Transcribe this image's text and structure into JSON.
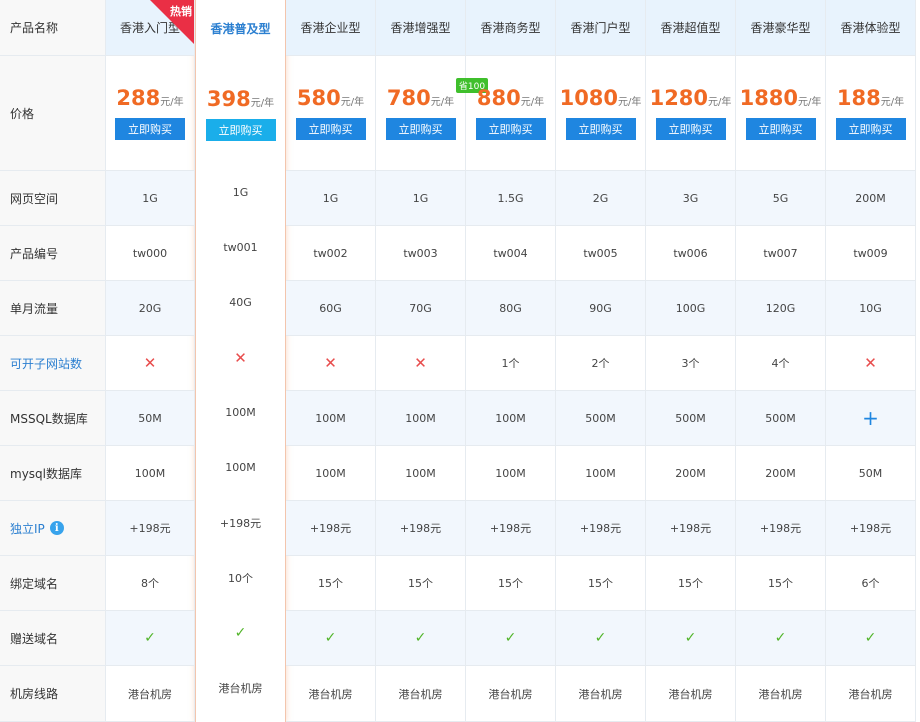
{
  "row_labels": [
    "产品名称",
    "价格",
    "网页空间",
    "产品编号",
    "单月流量",
    "可开子网站数",
    "MSSQL数据库",
    "mysql数据库",
    "独立IP",
    "绑定域名",
    "赠送域名",
    "机房线路"
  ],
  "price_unit": "元/年",
  "buy_label": "立即购买",
  "hot_label": "热销",
  "info_icon": "i",
  "highlight_index": 1,
  "colors": {
    "price": "#f06a24",
    "buy": "#1f86e0",
    "highlight_buy": "#1aaeea",
    "cross": "#e84c4c",
    "check": "#52b52a",
    "header_bg": "#e8f3fd"
  },
  "plans": [
    {
      "name": "香港入门型",
      "price": "288",
      "hot": true,
      "space": "1G",
      "code": "tw000",
      "traffic": "20G",
      "subsites": {
        "icon": "cross-icon"
      },
      "mssql": "50M",
      "mysql": "100M",
      "ip": "+198元",
      "domains": "8个",
      "gift": {
        "icon": "check-icon"
      },
      "line": "港台机房"
    },
    {
      "name": "香港普及型",
      "price": "398",
      "space": "1G",
      "code": "tw001",
      "traffic": "40G",
      "subsites": {
        "icon": "cross-icon"
      },
      "mssql": "100M",
      "mysql": "100M",
      "ip": "+198元",
      "domains": "10个",
      "gift": {
        "icon": "check-icon"
      },
      "line": "港台机房"
    },
    {
      "name": "香港企业型",
      "price": "580",
      "space": "1G",
      "code": "tw002",
      "traffic": "60G",
      "subsites": {
        "icon": "cross-icon"
      },
      "mssql": "100M",
      "mysql": "100M",
      "ip": "+198元",
      "domains": "15个",
      "gift": {
        "icon": "check-icon"
      },
      "line": "港台机房"
    },
    {
      "name": "香港增强型",
      "price": "780",
      "badge": "省100",
      "space": "1G",
      "code": "tw003",
      "traffic": "70G",
      "subsites": {
        "icon": "cross-icon"
      },
      "mssql": "100M",
      "mysql": "100M",
      "ip": "+198元",
      "domains": "15个",
      "gift": {
        "icon": "check-icon"
      },
      "line": "港台机房"
    },
    {
      "name": "香港商务型",
      "price": "880",
      "space": "1.5G",
      "code": "tw004",
      "traffic": "80G",
      "subsites": "1个",
      "mssql": "100M",
      "mysql": "100M",
      "ip": "+198元",
      "domains": "15个",
      "gift": {
        "icon": "check-icon"
      },
      "line": "港台机房"
    },
    {
      "name": "香港门户型",
      "price": "1080",
      "space": "2G",
      "code": "tw005",
      "traffic": "90G",
      "subsites": "2个",
      "mssql": "500M",
      "mysql": "100M",
      "ip": "+198元",
      "domains": "15个",
      "gift": {
        "icon": "check-icon"
      },
      "line": "港台机房"
    },
    {
      "name": "香港超值型",
      "price": "1280",
      "space": "3G",
      "code": "tw006",
      "traffic": "100G",
      "subsites": "3个",
      "mssql": "500M",
      "mysql": "200M",
      "ip": "+198元",
      "domains": "15个",
      "gift": {
        "icon": "check-icon"
      },
      "line": "港台机房"
    },
    {
      "name": "香港豪华型",
      "price": "1880",
      "space": "5G",
      "code": "tw007",
      "traffic": "120G",
      "subsites": "4个",
      "mssql": "500M",
      "mysql": "200M",
      "ip": "+198元",
      "domains": "15个",
      "gift": {
        "icon": "check-icon"
      },
      "line": "港台机房"
    },
    {
      "name": "香港体验型",
      "price": "188",
      "space": "200M",
      "code": "tw009",
      "traffic": "10G",
      "subsites": {
        "icon": "cross-icon"
      },
      "mssql": {
        "icon": "plus-icon"
      },
      "mysql": "50M",
      "ip": "+198元",
      "domains": "6个",
      "gift": {
        "icon": "check-icon"
      },
      "line": "港台机房"
    }
  ]
}
